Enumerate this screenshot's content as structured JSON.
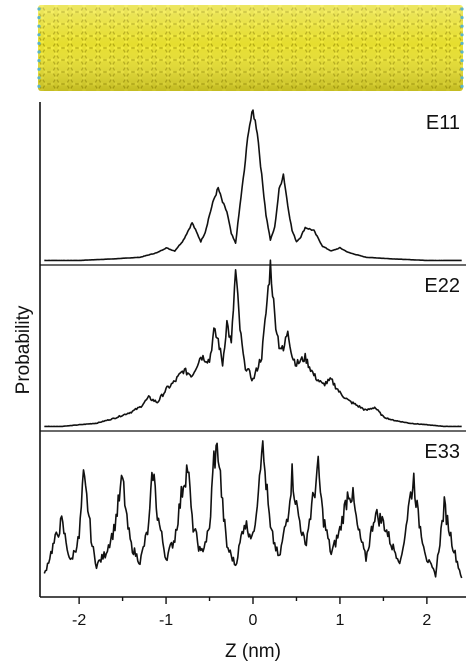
{
  "chart_data": {
    "type": "line",
    "xlabel": "Z (nm)",
    "ylabel": "Probability",
    "xlim": [
      -2.45,
      2.45
    ],
    "x_ticks": [
      -2,
      -1,
      0,
      1,
      2
    ],
    "x_tick_labels": [
      "-2",
      "-1",
      "0",
      "1",
      "2"
    ],
    "grid": false,
    "header_image": "carbon-nanotube",
    "colors": {
      "line": "#111111",
      "nanotube": "#e6de2e",
      "nanotube_atom": "#f2ea3a",
      "tube_ends": "#5ab4c8"
    },
    "panels": [
      {
        "label": "E11",
        "ylim": [
          0,
          1.0
        ],
        "series": [
          {
            "x": [
              -2.4,
              -2.0,
              -1.6,
              -1.3,
              -1.1,
              -1.0,
              -0.9,
              -0.8,
              -0.7,
              -0.6,
              -0.55,
              -0.5,
              -0.45,
              -0.4,
              -0.35,
              -0.3,
              -0.25,
              -0.2,
              -0.15,
              -0.1,
              -0.05,
              0.0,
              0.05,
              0.1,
              0.15,
              0.2,
              0.25,
              0.3,
              0.35,
              0.4,
              0.45,
              0.5,
              0.55,
              0.6,
              0.7,
              0.8,
              0.9,
              1.0,
              1.1,
              1.3,
              1.6,
              2.0,
              2.4
            ],
            "y": [
              0.01,
              0.01,
              0.02,
              0.03,
              0.06,
              0.09,
              0.07,
              0.14,
              0.25,
              0.13,
              0.19,
              0.3,
              0.4,
              0.47,
              0.38,
              0.32,
              0.18,
              0.12,
              0.36,
              0.58,
              0.85,
              0.96,
              0.83,
              0.55,
              0.3,
              0.14,
              0.22,
              0.46,
              0.56,
              0.36,
              0.2,
              0.13,
              0.16,
              0.22,
              0.2,
              0.1,
              0.07,
              0.09,
              0.06,
              0.03,
              0.02,
              0.01,
              0.01
            ]
          }
        ]
      },
      {
        "label": "E22",
        "ylim": [
          0,
          1.0
        ],
        "series": [
          {
            "x": [
              -2.4,
              -2.2,
              -2.0,
              -1.8,
              -1.6,
              -1.5,
              -1.4,
              -1.3,
              -1.2,
              -1.1,
              -1.0,
              -0.9,
              -0.8,
              -0.7,
              -0.6,
              -0.5,
              -0.45,
              -0.4,
              -0.35,
              -0.3,
              -0.25,
              -0.2,
              -0.15,
              -0.1,
              0.0,
              0.1,
              0.15,
              0.2,
              0.25,
              0.3,
              0.35,
              0.4,
              0.45,
              0.5,
              0.6,
              0.7,
              0.8,
              0.9,
              1.0,
              1.1,
              1.2,
              1.3,
              1.4,
              1.5,
              1.6,
              1.8,
              2.0,
              2.2,
              2.4
            ],
            "y": [
              0.01,
              0.01,
              0.02,
              0.03,
              0.06,
              0.08,
              0.1,
              0.13,
              0.19,
              0.16,
              0.24,
              0.29,
              0.36,
              0.33,
              0.45,
              0.42,
              0.6,
              0.55,
              0.4,
              0.66,
              0.52,
              0.98,
              0.62,
              0.4,
              0.3,
              0.45,
              0.72,
              1.02,
              0.7,
              0.52,
              0.48,
              0.62,
              0.45,
              0.4,
              0.44,
              0.33,
              0.27,
              0.3,
              0.22,
              0.17,
              0.14,
              0.11,
              0.13,
              0.07,
              0.05,
              0.03,
              0.02,
              0.01,
              0.01
            ]
          }
        ]
      },
      {
        "label": "E33",
        "ylim": [
          0,
          1.0
        ],
        "series": [
          {
            "x": [
              -2.4,
              -2.3,
              -2.2,
              -2.1,
              -2.0,
              -1.95,
              -1.9,
              -1.85,
              -1.8,
              -1.7,
              -1.6,
              -1.5,
              -1.45,
              -1.4,
              -1.3,
              -1.2,
              -1.15,
              -1.1,
              -1.0,
              -0.9,
              -0.8,
              -0.75,
              -0.7,
              -0.6,
              -0.5,
              -0.45,
              -0.4,
              -0.35,
              -0.3,
              -0.2,
              -0.1,
              0.0,
              0.05,
              0.1,
              0.15,
              0.2,
              0.3,
              0.4,
              0.45,
              0.5,
              0.6,
              0.7,
              0.75,
              0.8,
              0.9,
              1.0,
              1.1,
              1.15,
              1.2,
              1.3,
              1.4,
              1.5,
              1.6,
              1.7,
              1.8,
              1.85,
              1.9,
              2.0,
              2.1,
              2.2,
              2.3,
              2.4
            ],
            "y": [
              0.12,
              0.3,
              0.45,
              0.2,
              0.35,
              0.72,
              0.55,
              0.3,
              0.18,
              0.25,
              0.4,
              0.72,
              0.45,
              0.3,
              0.2,
              0.42,
              0.78,
              0.5,
              0.22,
              0.35,
              0.7,
              0.8,
              0.45,
              0.25,
              0.4,
              0.85,
              0.9,
              0.55,
              0.3,
              0.18,
              0.45,
              0.35,
              0.6,
              0.95,
              0.7,
              0.4,
              0.22,
              0.5,
              0.75,
              0.55,
              0.3,
              0.62,
              0.78,
              0.5,
              0.25,
              0.4,
              0.65,
              0.6,
              0.42,
              0.22,
              0.5,
              0.45,
              0.3,
              0.2,
              0.58,
              0.72,
              0.48,
              0.22,
              0.12,
              0.55,
              0.3,
              0.1
            ]
          }
        ]
      }
    ]
  }
}
